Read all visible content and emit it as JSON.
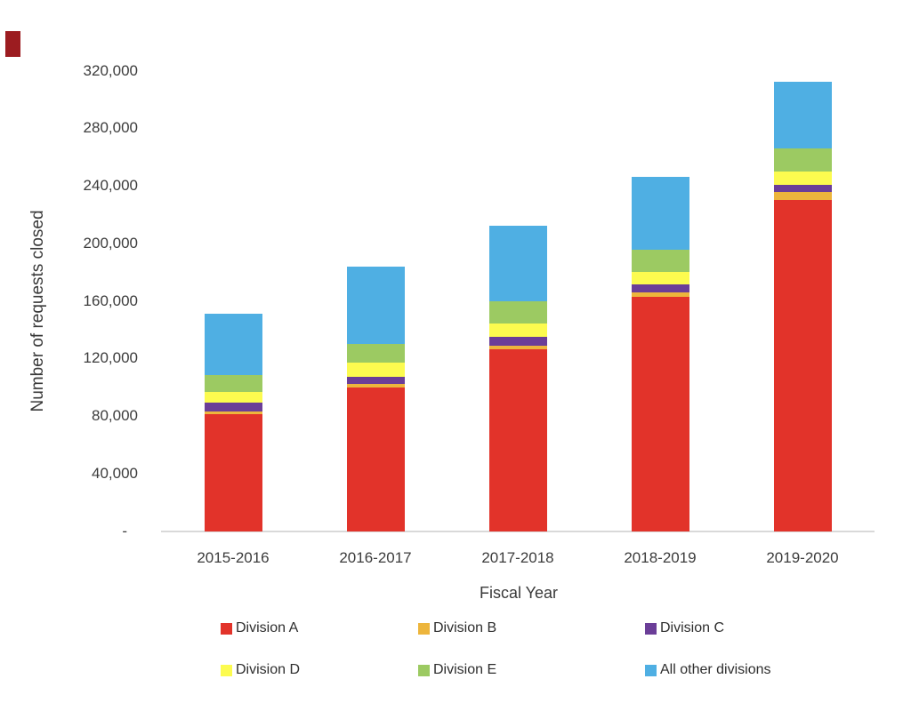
{
  "corner_marker": {
    "color": "#9c1c20"
  },
  "chart_data": {
    "type": "bar",
    "stacked": true,
    "xlabel": "Fiscal Year",
    "ylabel": "Number of requests closed",
    "categories": [
      "2015-2016",
      "2016-2017",
      "2017-2018",
      "2018-2019",
      "2019-2020"
    ],
    "series": [
      {
        "name": "Division A",
        "color": "#e2332a",
        "values": [
          81000,
          99500,
          126500,
          163000,
          230000
        ]
      },
      {
        "name": "Division B",
        "color": "#edb53c",
        "values": [
          2000,
          2500,
          2500,
          3000,
          5500
        ]
      },
      {
        "name": "Division C",
        "color": "#6b3e98",
        "values": [
          6000,
          5000,
          6000,
          5500,
          5000
        ]
      },
      {
        "name": "Division D",
        "color": "#fcfb4f",
        "values": [
          7500,
          10000,
          9000,
          8500,
          9500
        ]
      },
      {
        "name": "Division E",
        "color": "#9cca62",
        "values": [
          12000,
          13000,
          15500,
          15500,
          16000
        ]
      },
      {
        "name": "All other divisions",
        "color": "#4fafe3",
        "values": [
          42500,
          53500,
          52500,
          51000,
          46500
        ]
      }
    ],
    "totals": [
      151000,
      183500,
      212000,
      246500,
      312500
    ],
    "y_ticks": [
      {
        "label": "320,000",
        "value": 320000
      },
      {
        "label": "280,000",
        "value": 280000
      },
      {
        "label": "240,000",
        "value": 240000
      },
      {
        "label": "200,000",
        "value": 200000
      },
      {
        "label": "160,000",
        "value": 160000
      },
      {
        "label": "120,000",
        "value": 120000
      },
      {
        "label": "80,000",
        "value": 80000
      },
      {
        "label": "40,000",
        "value": 40000
      },
      {
        "label": "-",
        "value": 0
      }
    ],
    "ylim": [
      0,
      330000
    ],
    "grid": false,
    "legend_position": "bottom"
  }
}
